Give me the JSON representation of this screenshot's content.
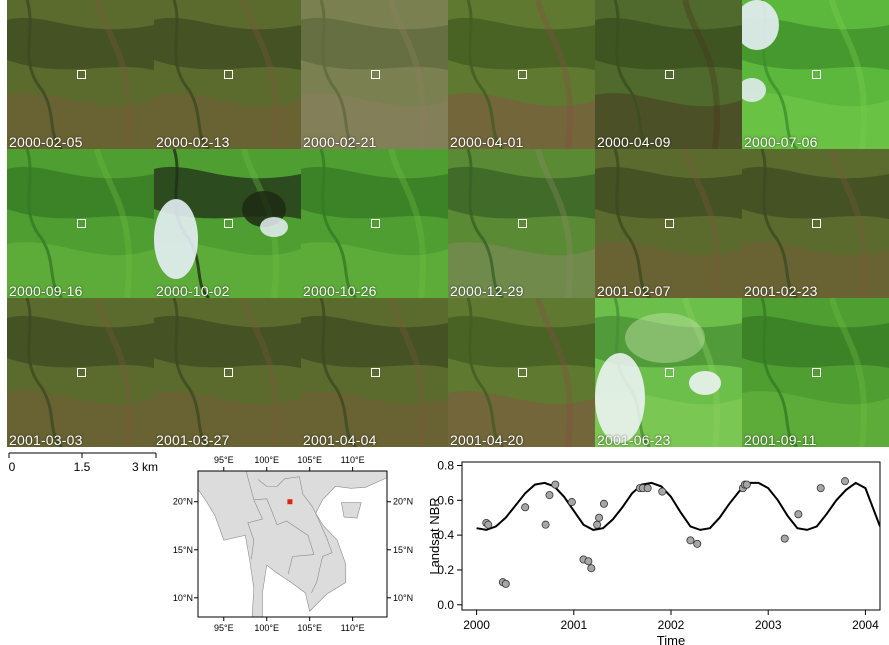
{
  "tiles": [
    {
      "date": "2000-02-05",
      "scene": "dry-brown"
    },
    {
      "date": "2000-02-13",
      "scene": "dry-brown"
    },
    {
      "date": "2000-02-21",
      "scene": "hazy"
    },
    {
      "date": "2000-04-01",
      "scene": "burn-patches"
    },
    {
      "date": "2000-04-09",
      "scene": "dark-burn"
    },
    {
      "date": "2000-07-06",
      "scene": "green-clouds"
    },
    {
      "date": "2000-09-16",
      "scene": "green"
    },
    {
      "date": "2000-10-02",
      "scene": "green-cloud-left"
    },
    {
      "date": "2000-10-26",
      "scene": "green"
    },
    {
      "date": "2000-12-29",
      "scene": "hazy-green"
    },
    {
      "date": "2001-02-07",
      "scene": "dry-brown"
    },
    {
      "date": "2001-02-23",
      "scene": "dry-brown"
    },
    {
      "date": "2001-03-03",
      "scene": "dry-brown"
    },
    {
      "date": "2001-03-27",
      "scene": "dry-brown"
    },
    {
      "date": "2001-04-04",
      "scene": "dry-brown"
    },
    {
      "date": "2001-04-20",
      "scene": "burn-patches"
    },
    {
      "date": "2001-06-23",
      "scene": "green-cloud-heavy"
    },
    {
      "date": "2001-09-11",
      "scene": "green"
    }
  ],
  "scalebar": {
    "ticks": [
      "0",
      "1.5",
      "3 km"
    ]
  },
  "map": {
    "top_ticks": [
      "95°E",
      "100°E",
      "105°E",
      "110°E"
    ],
    "bottom_ticks": [
      "95°E",
      "100°E",
      "105°E",
      "110°E"
    ],
    "left_ticks": [
      "20°N",
      "15°N",
      "10°N"
    ],
    "right_ticks": [
      "20°N",
      "15°N",
      "10°N"
    ],
    "lon_range": [
      92,
      114
    ],
    "lat_range": [
      8,
      23.2
    ],
    "site": {
      "lon": 102.7,
      "lat": 20.0
    },
    "site_color": "#e02010",
    "land_color": "#dcdcdc"
  },
  "chart_data": {
    "type": "scatter",
    "title": "",
    "xlabel": "Time",
    "ylabel": "Landsat NBR",
    "xlim": [
      1999.85,
      2004.15
    ],
    "ylim": [
      -0.03,
      0.82
    ],
    "xticks": [
      "2000",
      "2001",
      "2002",
      "2003",
      "2004"
    ],
    "yticks": [
      "0.0",
      "0.2",
      "0.4",
      "0.6",
      "0.8"
    ],
    "series": [
      {
        "kind": "points",
        "x": [
          2000.1,
          2000.12,
          2000.27,
          2000.3,
          2000.5,
          2000.71,
          2000.75,
          2000.81,
          2000.98,
          2001.1,
          2001.15,
          2001.18,
          2001.24,
          2001.26,
          2001.31,
          2001.68,
          2001.71,
          2001.76,
          2001.91,
          2002.2,
          2002.27,
          2002.74,
          2002.76,
          2002.78,
          2003.17,
          2003.31,
          2003.54,
          2003.79
        ],
        "y": [
          0.47,
          0.46,
          0.13,
          0.12,
          0.56,
          0.46,
          0.63,
          0.69,
          0.59,
          0.26,
          0.25,
          0.21,
          0.46,
          0.5,
          0.58,
          0.67,
          0.67,
          0.67,
          0.65,
          0.37,
          0.35,
          0.67,
          0.69,
          0.69,
          0.38,
          0.52,
          0.67,
          0.71
        ]
      },
      {
        "kind": "fit",
        "x": [
          2000.0,
          2000.1,
          2000.2,
          2000.3,
          2000.4,
          2000.5,
          2000.6,
          2000.7,
          2000.8,
          2000.9,
          2001.0,
          2001.1,
          2001.2,
          2001.3,
          2001.4,
          2001.5,
          2001.6,
          2001.7,
          2001.8,
          2001.9,
          2002.0,
          2002.1,
          2002.2,
          2002.3,
          2002.4,
          2002.5,
          2002.6,
          2002.7,
          2002.8,
          2002.9,
          2003.0,
          2003.1,
          2003.2,
          2003.3,
          2003.4,
          2003.5,
          2003.6,
          2003.7,
          2003.8,
          2003.9,
          2004.0,
          2004.15
        ],
        "y": [
          0.44,
          0.43,
          0.45,
          0.5,
          0.57,
          0.64,
          0.69,
          0.7,
          0.68,
          0.62,
          0.54,
          0.46,
          0.43,
          0.44,
          0.49,
          0.56,
          0.64,
          0.69,
          0.7,
          0.68,
          0.62,
          0.53,
          0.45,
          0.43,
          0.44,
          0.5,
          0.58,
          0.65,
          0.7,
          0.7,
          0.67,
          0.6,
          0.51,
          0.44,
          0.43,
          0.45,
          0.52,
          0.6,
          0.66,
          0.7,
          0.67,
          0.45
        ]
      }
    ]
  }
}
